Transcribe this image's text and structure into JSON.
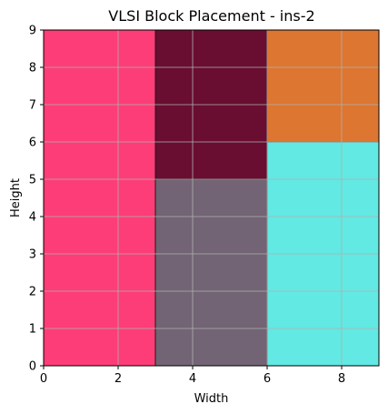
{
  "chart_data": {
    "type": "rectangle-placement",
    "title": "VLSI Block Placement - ins-2",
    "xlabel": "Width",
    "ylabel": "Height",
    "xlim": [
      0,
      9
    ],
    "ylim": [
      0,
      9
    ],
    "xticks": [
      0,
      2,
      4,
      6,
      8
    ],
    "yticks": [
      0,
      1,
      2,
      3,
      4,
      5,
      6,
      7,
      8,
      9
    ],
    "grid": true,
    "blocks": [
      {
        "x": 0,
        "y": 0,
        "w": 3,
        "h": 9,
        "color": "#fd3d77"
      },
      {
        "x": 3,
        "y": 5,
        "w": 3,
        "h": 4,
        "color": "#690e30"
      },
      {
        "x": 3,
        "y": 0,
        "w": 3,
        "h": 5,
        "color": "#726474"
      },
      {
        "x": 6,
        "y": 6,
        "w": 3,
        "h": 3,
        "color": "#dc7630"
      },
      {
        "x": 6,
        "y": 0,
        "w": 3,
        "h": 6,
        "color": "#62e9e3"
      }
    ]
  }
}
